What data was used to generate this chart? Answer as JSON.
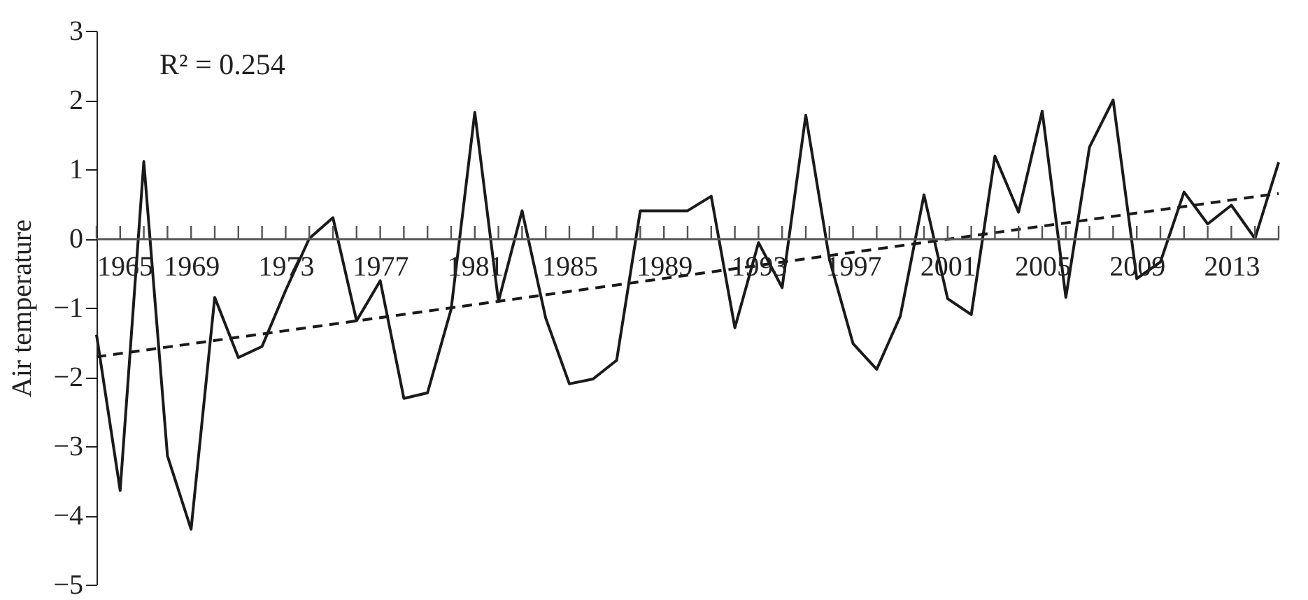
{
  "chart_data": {
    "type": "line",
    "ylabel": "Air temperature",
    "annotations": [
      "R² = 0.254"
    ],
    "x": [
      1965,
      1966,
      1967,
      1968,
      1969,
      1970,
      1971,
      1972,
      1973,
      1974,
      1975,
      1976,
      1977,
      1978,
      1979,
      1980,
      1981,
      1982,
      1983,
      1984,
      1985,
      1986,
      1987,
      1988,
      1989,
      1990,
      1991,
      1992,
      1993,
      1994,
      1995,
      1996,
      1997,
      1998,
      1999,
      2000,
      2001,
      2002,
      2003,
      2004,
      2005,
      2006,
      2007,
      2008,
      2009,
      2010,
      2011,
      2012,
      2013,
      2014,
      2015
    ],
    "series": [
      {
        "color": "#1a1a1a",
        "line_style": "solid",
        "values": [
          -1.39,
          -3.64,
          1.11,
          -3.14,
          -4.2,
          -0.85,
          -1.72,
          -1.56,
          -0.75,
          0.0,
          0.3,
          -1.19,
          -0.61,
          -2.31,
          -2.23,
          -1.02,
          1.82,
          -0.91,
          0.4,
          -1.15,
          -2.1,
          -2.03,
          -1.76,
          0.4,
          0.4,
          0.4,
          0.61,
          -1.29,
          -0.06,
          -0.71,
          1.78,
          -0.3,
          -1.52,
          -1.89,
          -1.12,
          0.63,
          -0.87,
          -1.1,
          1.19,
          0.38,
          1.84,
          -0.85,
          1.32,
          2.0,
          -0.58,
          -0.34,
          0.67,
          0.21,
          0.48,
          0.0,
          1.1
        ]
      },
      {
        "type": "line",
        "color": "#1a1a1a",
        "line_style": "dashed",
        "x": [
          1965,
          2015
        ],
        "values": [
          -1.71,
          0.65
        ]
      }
    ],
    "xlim": [
      1965,
      2015
    ],
    "ylim": [
      -5,
      3
    ],
    "xticks": [
      1965,
      {
        "value": 1966,
        "label": null
      },
      {
        "value": 1967,
        "label": null
      },
      {
        "value": 1968,
        "label": null
      },
      1969,
      {
        "value": 1970,
        "label": null
      },
      {
        "value": 1971,
        "label": null
      },
      {
        "value": 1972,
        "label": null
      },
      1973,
      {
        "value": 1974,
        "label": null
      },
      {
        "value": 1975,
        "label": null
      },
      {
        "value": 1976,
        "label": null
      },
      1977,
      {
        "value": 1978,
        "label": null
      },
      {
        "value": 1979,
        "label": null
      },
      {
        "value": 1980,
        "label": null
      },
      1981,
      {
        "value": 1982,
        "label": null
      },
      {
        "value": 1983,
        "label": null
      },
      {
        "value": 1984,
        "label": null
      },
      1985,
      {
        "value": 1986,
        "label": null
      },
      {
        "value": 1987,
        "label": null
      },
      {
        "value": 1988,
        "label": null
      },
      1989,
      {
        "value": 1990,
        "label": null
      },
      {
        "value": 1991,
        "label": null
      },
      {
        "value": 1992,
        "label": null
      },
      1993,
      {
        "value": 1994,
        "label": null
      },
      {
        "value": 1995,
        "label": null
      },
      {
        "value": 1996,
        "label": null
      },
      1997,
      {
        "value": 1998,
        "label": null
      },
      {
        "value": 1999,
        "label": null
      },
      {
        "value": 2000,
        "label": null
      },
      2001,
      {
        "value": 2002,
        "label": null
      },
      {
        "value": 2003,
        "label": null
      },
      {
        "value": 2004,
        "label": null
      },
      2005,
      {
        "value": 2006,
        "label": null
      },
      {
        "value": 2007,
        "label": null
      },
      {
        "value": 2008,
        "label": null
      },
      2009,
      {
        "value": 2010,
        "label": null
      },
      {
        "value": 2011,
        "label": null
      },
      {
        "value": 2012,
        "label": null
      },
      2013,
      {
        "value": 2014,
        "label": null
      },
      {
        "value": 2015,
        "label": null
      }
    ],
    "yticks": [
      -5,
      -4,
      -3,
      -2,
      -1,
      0,
      1,
      2,
      3
    ],
    "grid": false
  }
}
